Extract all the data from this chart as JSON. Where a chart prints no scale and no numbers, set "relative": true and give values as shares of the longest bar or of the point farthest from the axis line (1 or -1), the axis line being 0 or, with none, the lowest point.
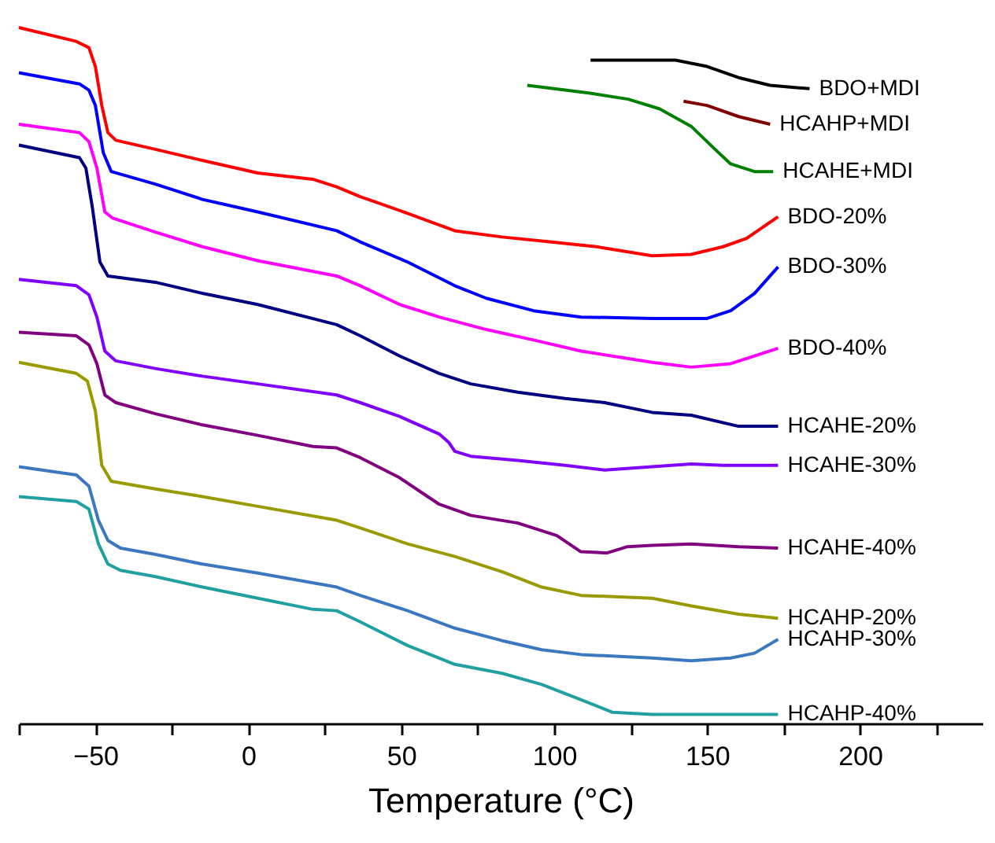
{
  "chart_data": {
    "type": "line",
    "relative": true,
    "xlabel": "Temperature (°C)",
    "xlim": [
      -75,
      240
    ],
    "xticks": [
      {
        "value": -75,
        "label": null
      },
      -50,
      {
        "value": -25,
        "label": null
      },
      0,
      {
        "value": 25,
        "label": null
      },
      50,
      {
        "value": 75,
        "label": null
      },
      100,
      {
        "value": 125,
        "label": null
      },
      150,
      {
        "value": 175,
        "label": null
      },
      200,
      {
        "value": 225,
        "label": null
      }
    ],
    "grid": false,
    "series": [
      {
        "name": "BDO+MDI",
        "color": "#000000",
        "x": [
          111.9,
          124.2,
          139.7,
          150,
          160.3,
          170.6,
          183.5
        ],
        "values": [
          0.953,
          0.953,
          0.953,
          0.944,
          0.928,
          0.917,
          0.912
        ]
      },
      {
        "name": "HCAHP+MDI",
        "color": "#800000",
        "x": [
          142.3,
          150,
          160.3,
          170.6
        ],
        "values": [
          0.894,
          0.888,
          0.872,
          0.861
        ]
      },
      {
        "name": "HCAHE+MDI",
        "color": "#008000",
        "x": [
          91.2,
          111.3,
          124.2,
          134.5,
          144.8,
          152.6,
          157.7,
          165.5,
          171.6
        ],
        "values": [
          0.917,
          0.906,
          0.897,
          0.883,
          0.858,
          0.825,
          0.804,
          0.793,
          0.793
        ]
      },
      {
        "name": "BDO-20%",
        "color": "#ff0000",
        "x": [
          -75,
          -56.2,
          -52.1,
          -50,
          -47.9,
          -45.9,
          -43.3,
          -30.4,
          -15,
          3.1,
          21.1,
          28.9,
          36.6,
          52.1,
          67.5,
          83,
          98.5,
          113.9,
          132,
          144.8,
          155.2,
          162.9,
          173.2
        ],
        "values": [
          1.0,
          0.98,
          0.971,
          0.944,
          0.888,
          0.849,
          0.838,
          0.825,
          0.809,
          0.791,
          0.782,
          0.771,
          0.757,
          0.733,
          0.708,
          0.699,
          0.692,
          0.685,
          0.672,
          0.674,
          0.685,
          0.697,
          0.728
        ]
      },
      {
        "name": "BDO-30%",
        "color": "#0000ff",
        "x": [
          -75,
          -55.2,
          -52.1,
          -50,
          -47.4,
          -44.8,
          -30.4,
          -15,
          3.1,
          28.9,
          36.6,
          52.1,
          67.5,
          77.8,
          93.3,
          108.8,
          132,
          150,
          157.7,
          165.5,
          173.2
        ],
        "values": [
          0.935,
          0.919,
          0.91,
          0.888,
          0.82,
          0.793,
          0.775,
          0.753,
          0.735,
          0.708,
          0.692,
          0.663,
          0.629,
          0.611,
          0.593,
          0.584,
          0.582,
          0.582,
          0.593,
          0.618,
          0.656
        ]
      },
      {
        "name": "BDO-40%",
        "color": "#ff00ff",
        "x": [
          -75,
          -55.2,
          -52.1,
          -49.5,
          -46.9,
          -44.3,
          -30.4,
          -15,
          3.1,
          28.9,
          36.6,
          49.5,
          62.4,
          77.8,
          93.3,
          108.8,
          132,
          144.8,
          157.7,
          165.5,
          173.2
        ],
        "values": [
          0.861,
          0.849,
          0.836,
          0.798,
          0.735,
          0.726,
          0.706,
          0.685,
          0.665,
          0.643,
          0.629,
          0.602,
          0.584,
          0.566,
          0.551,
          0.535,
          0.519,
          0.512,
          0.517,
          0.528,
          0.539
        ]
      },
      {
        "name": "HCAHE-20%",
        "color": "#000080",
        "x": [
          -75,
          -55.2,
          -53.1,
          -51,
          -48.5,
          -45.9,
          -30.4,
          -15,
          3.1,
          28.9,
          36.6,
          49.5,
          62.4,
          72.7,
          88.1,
          103.6,
          116.5,
          132,
          144.8,
          160.3,
          173.2
        ],
        "values": [
          0.831,
          0.813,
          0.798,
          0.742,
          0.663,
          0.643,
          0.634,
          0.618,
          0.602,
          0.573,
          0.557,
          0.528,
          0.503,
          0.488,
          0.476,
          0.467,
          0.461,
          0.447,
          0.443,
          0.427,
          0.427
        ]
      },
      {
        "name": "HCAHE-30%",
        "color": "#8000ff",
        "x": [
          -75,
          -56.2,
          -52.1,
          -49.5,
          -46.9,
          -43.3,
          -30.4,
          -15,
          3.1,
          28.9,
          36.6,
          49.5,
          62.4,
          65.5,
          67.5,
          72.7,
          88.1,
          103.6,
          116.5,
          132,
          144.8,
          155.2,
          173.2
        ],
        "values": [
          0.638,
          0.629,
          0.616,
          0.584,
          0.535,
          0.521,
          0.51,
          0.499,
          0.488,
          0.472,
          0.461,
          0.441,
          0.416,
          0.404,
          0.391,
          0.384,
          0.378,
          0.371,
          0.364,
          0.369,
          0.373,
          0.371,
          0.371
        ]
      },
      {
        "name": "HCAHE-40%",
        "color": "#800080",
        "x": [
          -75,
          -56.2,
          -52.1,
          -49.5,
          -46.9,
          -43.3,
          -30.4,
          -15,
          3.1,
          21.1,
          28.9,
          36.6,
          49.5,
          62.4,
          72.7,
          88.1,
          100.9,
          108.6,
          117.3,
          124,
          132,
          144.8,
          160.3,
          173.2
        ],
        "values": [
          0.562,
          0.557,
          0.544,
          0.517,
          0.472,
          0.461,
          0.445,
          0.429,
          0.414,
          0.398,
          0.396,
          0.382,
          0.353,
          0.315,
          0.299,
          0.288,
          0.27,
          0.247,
          0.245,
          0.254,
          0.256,
          0.258,
          0.254,
          0.252
        ]
      },
      {
        "name": "HCAHP-20%",
        "color": "#999900",
        "x": [
          -75,
          -56.2,
          -52.6,
          -50,
          -47.9,
          -44.8,
          -30.4,
          -15,
          3.1,
          28.9,
          36.6,
          52.1,
          67.5,
          83,
          95.9,
          108.8,
          132,
          144.8,
          160.3,
          173.2
        ],
        "values": [
          0.519,
          0.503,
          0.492,
          0.449,
          0.371,
          0.348,
          0.337,
          0.326,
          0.312,
          0.292,
          0.281,
          0.258,
          0.24,
          0.218,
          0.196,
          0.184,
          0.18,
          0.169,
          0.157,
          0.151
        ]
      },
      {
        "name": "HCAHP-30%",
        "color": "#3c78c0",
        "x": [
          -75,
          -56.2,
          -52.1,
          -49,
          -45.9,
          -41.8,
          -30.4,
          -15,
          3.1,
          28.9,
          36.6,
          52.1,
          67.5,
          83,
          95.9,
          108.8,
          132,
          144.8,
          157.7,
          165.5,
          173.2
        ],
        "values": [
          0.369,
          0.357,
          0.341,
          0.292,
          0.263,
          0.252,
          0.243,
          0.229,
          0.216,
          0.196,
          0.184,
          0.162,
          0.137,
          0.119,
          0.106,
          0.099,
          0.094,
          0.09,
          0.094,
          0.101,
          0.121
        ]
      },
      {
        "name": "HCAHP-40%",
        "color": "#20a0a0",
        "x": [
          -75,
          -56.2,
          -52.1,
          -49,
          -45.9,
          -41.8,
          -30.4,
          -15,
          3.1,
          21.1,
          28.9,
          36.6,
          52.1,
          67.5,
          83,
          95.9,
          108.8,
          119.1,
          132,
          144.8,
          160.3,
          173.2
        ],
        "values": [
          0.326,
          0.319,
          0.308,
          0.258,
          0.229,
          0.22,
          0.211,
          0.196,
          0.18,
          0.164,
          0.162,
          0.146,
          0.112,
          0.085,
          0.072,
          0.056,
          0.034,
          0.016,
          0.013,
          0.013,
          0.013,
          0.013
        ]
      }
    ]
  }
}
